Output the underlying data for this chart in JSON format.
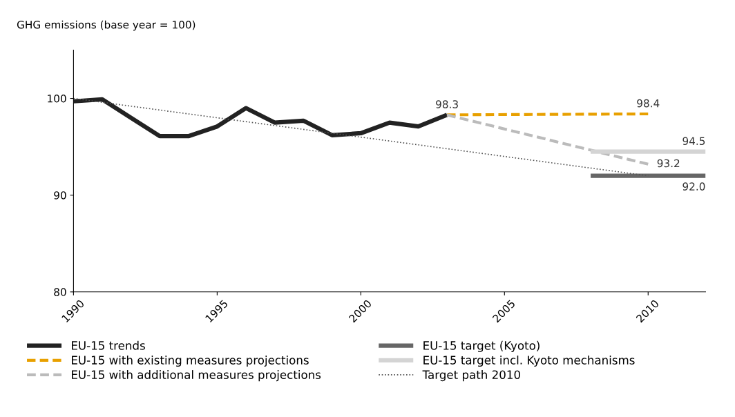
{
  "chart_data": {
    "type": "line",
    "ylabel": "GHG emissions (base year = 100)",
    "xlim": [
      1990,
      2012
    ],
    "xticks": [
      1990,
      1995,
      2000,
      2005,
      2010
    ],
    "ylim": [
      80,
      105
    ],
    "yticks": [
      80,
      90,
      100
    ],
    "grid": false,
    "legend": "bottom",
    "marker": "none",
    "series": [
      {
        "name": "EU-15 trends",
        "color": "#222222",
        "line_style": "solid",
        "x": [
          1990,
          1991,
          1992,
          1993,
          1994,
          1995,
          1996,
          1997,
          1998,
          1999,
          2000,
          2001,
          2002,
          2003
        ],
        "values": [
          99.7,
          99.9,
          98.0,
          96.1,
          96.1,
          97.1,
          99.0,
          97.5,
          97.7,
          96.2,
          96.4,
          97.5,
          97.1,
          98.3
        ]
      },
      {
        "name": "EU-15 with existing measures projections",
        "color": "#e8a000",
        "line_style": "dashed",
        "x": [
          2003,
          2010
        ],
        "values": [
          98.3,
          98.4
        ],
        "value_labels": [
          "98.3",
          "98.4"
        ]
      },
      {
        "name": "EU-15 with additional measures projections",
        "color": "#bbbbbb",
        "line_style": "dashed",
        "x": [
          2003,
          2010
        ],
        "values": [
          98.3,
          93.2
        ],
        "value_labels": [
          null,
          "93.2"
        ]
      },
      {
        "name": "EU-15 target (Kyoto)",
        "color": "#666666",
        "line_style": "solid",
        "x": [
          2008,
          2012
        ],
        "values": [
          92.0,
          92.0
        ],
        "value_labels": [
          null,
          "92.0"
        ]
      },
      {
        "name": "EU-15 target incl. Kyoto mechanisms",
        "color": "#d4d4d4",
        "line_style": "solid",
        "x": [
          2008,
          2012
        ],
        "values": [
          94.5,
          94.5
        ],
        "value_labels": [
          null,
          "94.5"
        ]
      },
      {
        "name": "Target path 2010",
        "color": "#555555",
        "line_style": "dotted",
        "x": [
          1990,
          2010
        ],
        "values": [
          100,
          92.0
        ]
      }
    ]
  }
}
